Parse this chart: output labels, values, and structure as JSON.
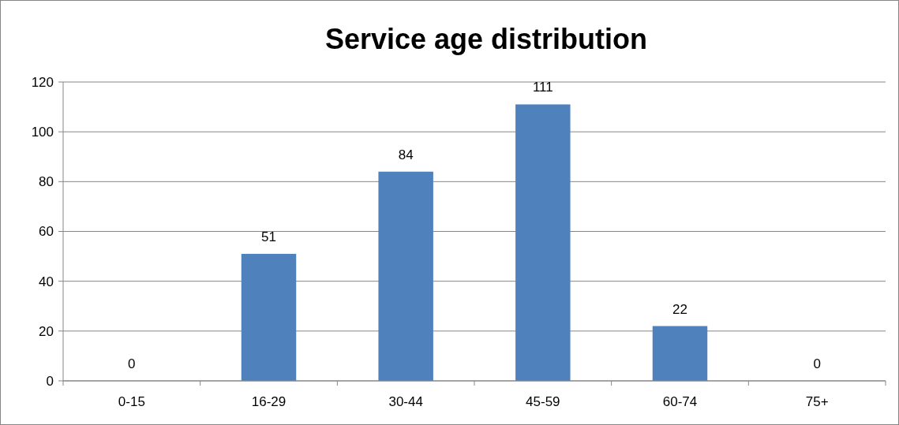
{
  "chart_data": {
    "type": "bar",
    "title": "Service age distribution",
    "categories": [
      "0-15",
      "16-29",
      "30-44",
      "45-59",
      "60-74",
      "75+"
    ],
    "values": [
      0,
      51,
      84,
      111,
      22,
      0
    ],
    "color": "#4f81bd",
    "ylim": [
      0,
      120
    ],
    "yticks": [
      0,
      20,
      40,
      60,
      80,
      100,
      120
    ],
    "grid": "y",
    "data_labels": true
  }
}
